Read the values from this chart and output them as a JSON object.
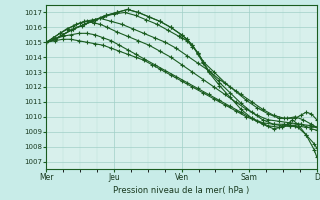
{
  "background_color": "#c8ece8",
  "plot_bg": "#d8f0ec",
  "grid_major_color": "#a0d0c8",
  "grid_minor_color": "#b8ddd8",
  "line_color": "#1a5c20",
  "ylabel_ticks": [
    1007,
    1008,
    1009,
    1010,
    1011,
    1012,
    1013,
    1014,
    1015,
    1016,
    1017
  ],
  "ylim": [
    1006.5,
    1017.5
  ],
  "xlabel": "Pression niveau de la mer( hPa )",
  "day_labels": [
    "Mer",
    "Jeu",
    "Ven",
    "Sam",
    "D"
  ],
  "day_positions": [
    0,
    0.25,
    0.5,
    0.75,
    1.0
  ],
  "series": [
    {
      "x": [
        0.0,
        0.03,
        0.06,
        0.09,
        0.12,
        0.15,
        0.18,
        0.21,
        0.24,
        0.27,
        0.3,
        0.33,
        0.36,
        0.39,
        0.42,
        0.46,
        0.5,
        0.54,
        0.58,
        0.62,
        0.66,
        0.7,
        0.74,
        0.78,
        0.82,
        0.86,
        0.9,
        0.94,
        0.98,
        1.0
      ],
      "y": [
        1015.0,
        1015.1,
        1015.2,
        1015.2,
        1015.1,
        1015.0,
        1014.9,
        1014.8,
        1014.6,
        1014.4,
        1014.2,
        1014.0,
        1013.8,
        1013.5,
        1013.2,
        1012.8,
        1012.4,
        1012.0,
        1011.6,
        1011.2,
        1010.8,
        1010.4,
        1010.0,
        1009.7,
        1009.4,
        1009.3,
        1009.4,
        1009.5,
        1009.4,
        1009.3
      ]
    },
    {
      "x": [
        0.0,
        0.03,
        0.06,
        0.09,
        0.12,
        0.15,
        0.18,
        0.21,
        0.24,
        0.27,
        0.3,
        0.33,
        0.36,
        0.4,
        0.44,
        0.48,
        0.52,
        0.56,
        0.6,
        0.64,
        0.68,
        0.72,
        0.76,
        0.8,
        0.84,
        0.88,
        0.92,
        0.96,
        1.0
      ],
      "y": [
        1015.0,
        1015.2,
        1015.4,
        1015.5,
        1015.6,
        1015.6,
        1015.5,
        1015.3,
        1015.1,
        1014.8,
        1014.5,
        1014.2,
        1013.9,
        1013.5,
        1013.1,
        1012.7,
        1012.3,
        1011.9,
        1011.5,
        1011.1,
        1010.7,
        1010.3,
        1009.9,
        1009.6,
        1009.5,
        1009.5,
        1009.4,
        1009.3,
        1009.3
      ]
    },
    {
      "x": [
        0.0,
        0.025,
        0.05,
        0.075,
        0.1,
        0.125,
        0.15,
        0.175,
        0.2,
        0.225,
        0.26,
        0.3,
        0.34,
        0.38,
        0.42,
        0.46,
        0.5,
        0.54,
        0.58,
        0.62,
        0.66,
        0.7,
        0.74,
        0.78,
        0.82,
        0.86,
        0.9,
        0.94,
        0.98,
        1.0
      ],
      "y": [
        1015.0,
        1015.3,
        1015.6,
        1015.9,
        1016.1,
        1016.3,
        1016.4,
        1016.3,
        1016.2,
        1016.0,
        1015.7,
        1015.4,
        1015.1,
        1014.8,
        1014.4,
        1014.0,
        1013.5,
        1013.0,
        1012.5,
        1012.0,
        1011.5,
        1011.0,
        1010.5,
        1010.1,
        1009.8,
        1009.7,
        1009.6,
        1009.5,
        1009.2,
        1009.1
      ]
    },
    {
      "x": [
        0.0,
        0.025,
        0.05,
        0.08,
        0.11,
        0.14,
        0.17,
        0.2,
        0.24,
        0.28,
        0.32,
        0.36,
        0.4,
        0.44,
        0.48,
        0.52,
        0.56,
        0.6,
        0.64,
        0.68,
        0.72,
        0.76,
        0.8,
        0.84,
        0.88,
        0.92,
        0.94,
        0.96,
        0.98,
        1.0
      ],
      "y": [
        1015.0,
        1015.3,
        1015.6,
        1015.9,
        1016.2,
        1016.4,
        1016.5,
        1016.6,
        1016.4,
        1016.2,
        1015.9,
        1015.6,
        1015.3,
        1015.0,
        1014.6,
        1014.1,
        1013.6,
        1013.1,
        1012.5,
        1012.0,
        1011.5,
        1011.0,
        1010.5,
        1010.1,
        1009.9,
        1009.9,
        1010.1,
        1010.3,
        1010.2,
        1009.8
      ]
    },
    {
      "x": [
        0.0,
        0.03,
        0.06,
        0.09,
        0.13,
        0.17,
        0.21,
        0.25,
        0.29,
        0.33,
        0.37,
        0.41,
        0.45,
        0.49,
        0.5,
        0.52,
        0.54,
        0.56,
        0.58,
        0.62,
        0.66,
        0.7,
        0.74,
        0.78,
        0.82,
        0.86,
        0.89,
        0.92,
        0.95,
        0.98,
        1.0
      ],
      "y": [
        1015.0,
        1015.2,
        1015.5,
        1015.8,
        1016.1,
        1016.4,
        1016.7,
        1016.9,
        1017.0,
        1016.8,
        1016.5,
        1016.2,
        1015.8,
        1015.4,
        1015.3,
        1015.1,
        1014.7,
        1014.3,
        1013.7,
        1013.0,
        1012.3,
        1011.7,
        1011.1,
        1010.6,
        1010.2,
        1009.9,
        1009.9,
        1010.0,
        1009.8,
        1009.5,
        1009.3
      ]
    },
    {
      "x": [
        0.0,
        0.03,
        0.06,
        0.1,
        0.14,
        0.18,
        0.22,
        0.26,
        0.3,
        0.34,
        0.38,
        0.42,
        0.46,
        0.5,
        0.52,
        0.54,
        0.56,
        0.58,
        0.6,
        0.64,
        0.68,
        0.72,
        0.76,
        0.8,
        0.84,
        0.87,
        0.9,
        0.93,
        0.96,
        0.99,
        1.0
      ],
      "y": [
        1015.0,
        1015.2,
        1015.5,
        1015.9,
        1016.2,
        1016.5,
        1016.8,
        1017.0,
        1017.2,
        1017.0,
        1016.7,
        1016.4,
        1016.0,
        1015.5,
        1015.2,
        1014.8,
        1014.3,
        1013.7,
        1013.1,
        1012.3,
        1011.6,
        1010.9,
        1010.3,
        1009.8,
        1009.5,
        1009.4,
        1009.4,
        1009.3,
        1008.8,
        1008.2,
        1007.9
      ]
    },
    {
      "x": [
        0.0,
        0.03,
        0.06,
        0.1,
        0.14,
        0.18,
        0.22,
        0.26,
        0.3,
        0.34,
        0.38,
        0.42,
        0.46,
        0.5,
        0.52,
        0.54,
        0.56,
        0.58,
        0.6,
        0.64,
        0.68,
        0.72,
        0.76,
        0.8,
        0.84,
        0.87,
        0.89,
        0.91,
        0.93,
        0.96,
        0.99,
        1.0
      ],
      "y": [
        1015.0,
        1015.2,
        1015.5,
        1015.9,
        1016.2,
        1016.5,
        1016.8,
        1017.0,
        1017.2,
        1017.0,
        1016.7,
        1016.4,
        1016.0,
        1015.5,
        1015.2,
        1014.8,
        1014.2,
        1013.6,
        1013.0,
        1012.1,
        1011.3,
        1010.5,
        1009.9,
        1009.5,
        1009.2,
        1009.3,
        1009.5,
        1009.8,
        1009.5,
        1008.8,
        1007.8,
        1007.3
      ]
    }
  ]
}
